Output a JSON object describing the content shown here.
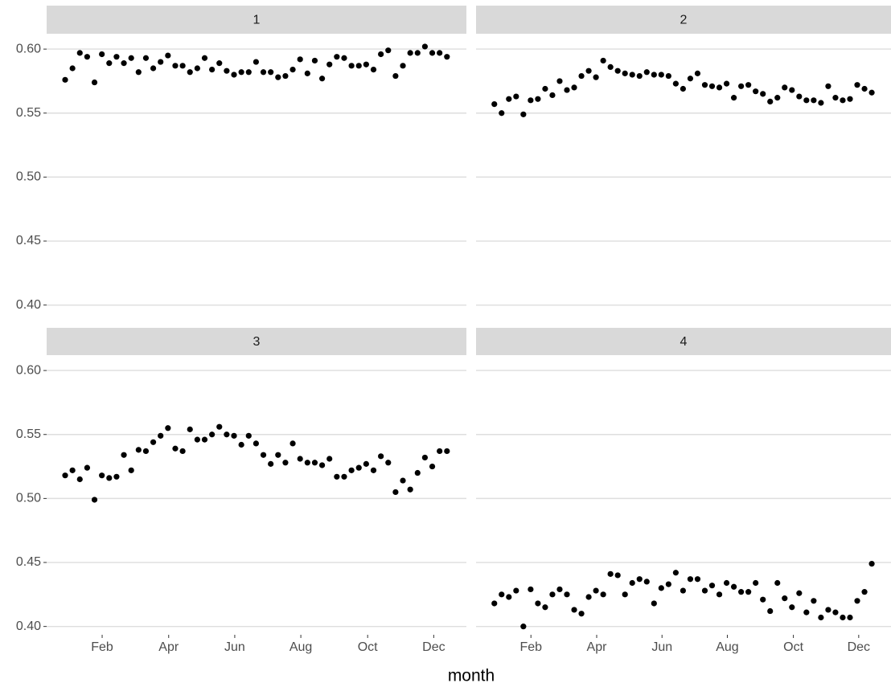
{
  "chart_data": {
    "type": "scatter",
    "xlabel": "month",
    "color": "#000000",
    "grid": true,
    "x": [
      1,
      2,
      3,
      4,
      5,
      6,
      7,
      8,
      9,
      10,
      11,
      12,
      13,
      14,
      15,
      16,
      17,
      18,
      19,
      20,
      21,
      22,
      23,
      24,
      25,
      26,
      27,
      28,
      29,
      30,
      31,
      32,
      33,
      34,
      35,
      36,
      37,
      38,
      39,
      40,
      41,
      42,
      43,
      44,
      45,
      46,
      47,
      48,
      49,
      50,
      51,
      52,
      53
    ],
    "xlim": [
      -1.52,
      55.65
    ],
    "xticks": [
      {
        "value": 6.04,
        "label": "Feb"
      },
      {
        "value": 15.1,
        "label": "Apr"
      },
      {
        "value": 24.1,
        "label": "Jun"
      },
      {
        "value": 33.1,
        "label": "Aug"
      },
      {
        "value": 42.2,
        "label": "Oct"
      },
      {
        "value": 51.2,
        "label": "Dec"
      }
    ],
    "ylim": [
      0.3935,
      0.612
    ],
    "yticks": [
      {
        "value": 0.4,
        "label": "0.40"
      },
      {
        "value": 0.45,
        "label": "0.45"
      },
      {
        "value": 0.5,
        "label": "0.50"
      },
      {
        "value": 0.55,
        "label": "0.55"
      },
      {
        "value": 0.6,
        "label": "0.60"
      }
    ],
    "panels": [
      {
        "title": "1",
        "values": [
          0.576,
          0.585,
          0.597,
          0.594,
          0.574,
          0.596,
          0.589,
          0.594,
          0.589,
          0.593,
          0.582,
          0.593,
          0.585,
          0.59,
          0.595,
          0.587,
          0.587,
          0.582,
          0.585,
          0.593,
          0.584,
          0.589,
          0.583,
          0.58,
          0.582,
          0.582,
          0.59,
          0.582,
          0.582,
          0.578,
          0.579,
          0.584,
          0.592,
          0.581,
          0.591,
          0.577,
          0.588,
          0.594,
          0.593,
          0.587,
          0.587,
          0.588,
          0.584,
          0.596,
          0.599,
          0.579,
          0.587,
          0.597,
          0.597,
          0.602,
          0.597,
          0.597,
          0.594
        ]
      },
      {
        "title": "2",
        "values": [
          0.557,
          0.55,
          0.561,
          0.563,
          0.549,
          0.56,
          0.561,
          0.569,
          0.564,
          0.575,
          0.568,
          0.57,
          0.579,
          0.583,
          0.578,
          0.591,
          0.586,
          0.583,
          0.581,
          0.58,
          0.579,
          0.582,
          0.58,
          0.58,
          0.579,
          0.573,
          0.569,
          0.577,
          0.581,
          0.572,
          0.571,
          0.57,
          0.573,
          0.562,
          0.571,
          0.572,
          0.567,
          0.565,
          0.559,
          0.562,
          0.57,
          0.568,
          0.563,
          0.56,
          0.56,
          0.558,
          0.571,
          0.562,
          0.56,
          0.561,
          0.572,
          0.569,
          0.566
        ]
      },
      {
        "title": "3",
        "values": [
          0.518,
          0.522,
          0.515,
          0.524,
          0.499,
          0.518,
          0.516,
          0.517,
          0.534,
          0.522,
          0.538,
          0.537,
          0.544,
          0.549,
          0.555,
          0.539,
          0.537,
          0.554,
          0.546,
          0.546,
          0.55,
          0.556,
          0.55,
          0.549,
          0.542,
          0.549,
          0.543,
          0.534,
          0.527,
          0.534,
          0.528,
          0.543,
          0.531,
          0.528,
          0.528,
          0.526,
          0.531,
          0.517,
          0.517,
          0.522,
          0.524,
          0.527,
          0.522,
          0.533,
          0.528,
          0.505,
          0.514,
          0.507,
          0.52,
          0.532,
          0.525,
          0.537,
          0.537
        ]
      },
      {
        "title": "4",
        "values": [
          0.418,
          0.425,
          0.423,
          0.428,
          0.4,
          0.429,
          0.418,
          0.415,
          0.425,
          0.429,
          0.425,
          0.413,
          0.41,
          0.423,
          0.428,
          0.425,
          0.441,
          0.44,
          0.425,
          0.434,
          0.437,
          0.435,
          0.418,
          0.43,
          0.433,
          0.442,
          0.428,
          0.437,
          0.437,
          0.428,
          0.432,
          0.425,
          0.434,
          0.431,
          0.427,
          0.427,
          0.434,
          0.421,
          0.412,
          0.434,
          0.422,
          0.415,
          0.426,
          0.411,
          0.42,
          0.407,
          0.413,
          0.411,
          0.407,
          0.407,
          0.42,
          0.427,
          0.449
        ]
      }
    ]
  }
}
